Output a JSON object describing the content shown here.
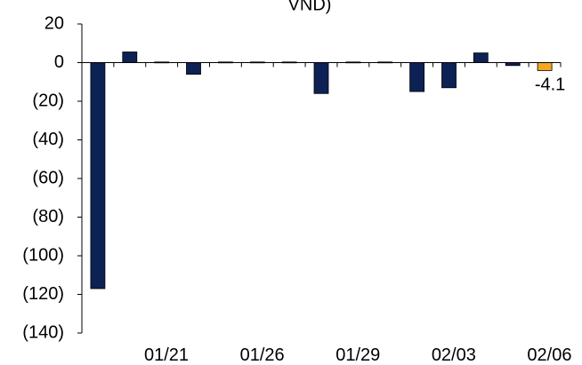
{
  "chart_data": {
    "type": "bar",
    "title_fragment": "VND)",
    "xlabel": "",
    "ylabel": "",
    "ylim": [
      -140,
      20
    ],
    "ytick_values": [
      20,
      0,
      -20,
      -40,
      -60,
      -80,
      -100,
      -120,
      -140
    ],
    "ytick_labels": [
      "20",
      "0",
      "(20)",
      "(40)",
      "(60)",
      "(80)",
      "(100)",
      "(120)",
      "(140)"
    ],
    "xtick_labels": [
      {
        "index": 3,
        "label": "01/21"
      },
      {
        "index": 6,
        "label": "01/26"
      },
      {
        "index": 9,
        "label": "01/29"
      },
      {
        "index": 12,
        "label": "02/03"
      },
      {
        "index": 15,
        "label": "02/06"
      }
    ],
    "values": [
      -117,
      5.5,
      0.3,
      -6,
      0.3,
      0.3,
      0.3,
      -16,
      0.3,
      0.3,
      -15,
      -13,
      5,
      -1.5,
      -4.1
    ],
    "highlight_index": 14,
    "data_labels": [
      {
        "index": 14,
        "text": "-4.1"
      }
    ],
    "colors": {
      "bar": "#0d2154",
      "highlight": "#f5a623",
      "axis": "#000000"
    },
    "grid": false
  }
}
